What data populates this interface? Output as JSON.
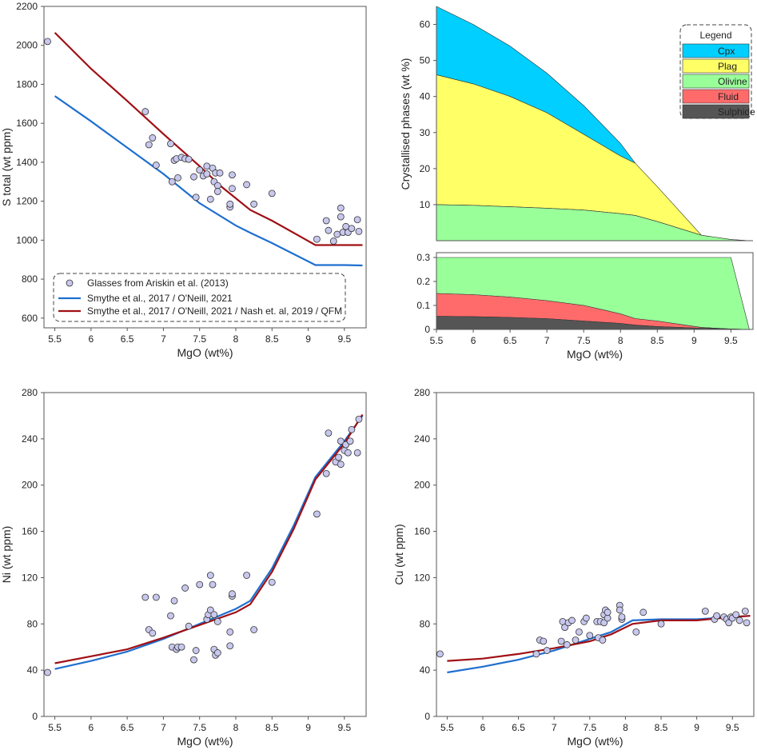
{
  "chart_data": [
    {
      "type": "scatter",
      "xlabel": "MgO (wt%)",
      "ylabel": "S total (wt ppm)",
      "xlim": [
        5.35,
        9.8
      ],
      "ylim": [
        550,
        2200
      ],
      "xticks": [
        "5.5",
        "6",
        "6.5",
        "7",
        "7.5",
        "8",
        "8.5",
        "9",
        "9.5"
      ],
      "yticks": [
        "600",
        "800",
        "1000",
        "1200",
        "1400",
        "1600",
        "1800",
        "2000",
        "2200"
      ],
      "legend_position": "bottom-left",
      "scatter_series": {
        "name": "Glasses from Ariskin et al. (2013)",
        "color": "#c8c8ee",
        "points": [
          [
            5.4,
            2020
          ],
          [
            6.75,
            1660
          ],
          [
            6.8,
            1490
          ],
          [
            6.85,
            1525
          ],
          [
            6.9,
            1385
          ],
          [
            7.1,
            1495
          ],
          [
            7.12,
            1300
          ],
          [
            7.15,
            1410
          ],
          [
            7.18,
            1418
          ],
          [
            7.2,
            1320
          ],
          [
            7.25,
            1425
          ],
          [
            7.3,
            1418
          ],
          [
            7.35,
            1415
          ],
          [
            7.42,
            1325
          ],
          [
            7.45,
            1220
          ],
          [
            7.5,
            1360
          ],
          [
            7.55,
            1330
          ],
          [
            7.6,
            1380
          ],
          [
            7.6,
            1340
          ],
          [
            7.65,
            1210
          ],
          [
            7.68,
            1370
          ],
          [
            7.7,
            1300
          ],
          [
            7.72,
            1345
          ],
          [
            7.75,
            1280
          ],
          [
            7.75,
            1250
          ],
          [
            7.78,
            1345
          ],
          [
            7.92,
            1170
          ],
          [
            7.92,
            1185
          ],
          [
            7.95,
            1265
          ],
          [
            7.95,
            1335
          ],
          [
            8.15,
            1285
          ],
          [
            8.25,
            1185
          ],
          [
            8.5,
            1240
          ],
          [
            9.12,
            1005
          ],
          [
            9.25,
            1100
          ],
          [
            9.28,
            1050
          ],
          [
            9.35,
            995
          ],
          [
            9.4,
            1030
          ],
          [
            9.45,
            1120
          ],
          [
            9.45,
            1165
          ],
          [
            9.48,
            1040
          ],
          [
            9.52,
            1070
          ],
          [
            9.55,
            1040
          ],
          [
            9.6,
            1060
          ],
          [
            9.68,
            1105
          ],
          [
            9.7,
            1045
          ]
        ]
      },
      "series": [
        {
          "name": "Smythe et al., 2017 / O'Neill, 2021",
          "color": "#1f6fcf",
          "points": [
            [
              5.5,
              1740
            ],
            [
              6.0,
              1610
            ],
            [
              6.5,
              1475
            ],
            [
              7.0,
              1340
            ],
            [
              7.5,
              1190
            ],
            [
              8.0,
              1075
            ],
            [
              8.2,
              1038
            ],
            [
              8.5,
              985
            ],
            [
              9.1,
              872
            ],
            [
              9.5,
              872
            ],
            [
              9.75,
              870
            ]
          ]
        },
        {
          "name": "Smythe et al., 2017 / O'Neill, 2021 / Nash et. al, 2019 / QFM",
          "color": "#a01015",
          "points": [
            [
              5.5,
              2065
            ],
            [
              6.0,
              1880
            ],
            [
              6.5,
              1715
            ],
            [
              7.0,
              1545
            ],
            [
              7.5,
              1380
            ],
            [
              7.8,
              1275
            ],
            [
              8.2,
              1155
            ],
            [
              8.5,
              1100
            ],
            [
              9.1,
              975
            ],
            [
              9.5,
              975
            ],
            [
              9.75,
              975
            ]
          ]
        }
      ]
    },
    {
      "type": "area",
      "xlabel": "MgO (wt%)",
      "ylabel": "Crystallised phases (wt %)",
      "xlim": [
        5.5,
        9.8
      ],
      "x": [
        5.5,
        6.0,
        6.5,
        7.0,
        7.5,
        8.0,
        8.2,
        8.5,
        9.1,
        9.5,
        9.75
      ],
      "upper_ylim": [
        0,
        65
      ],
      "upper_yticks": [
        "10",
        "20",
        "30",
        "40",
        "50",
        "60"
      ],
      "lower_ylim": [
        0,
        0.32
      ],
      "lower_yticks": [
        "0",
        "0.1",
        "0.2",
        "0.3"
      ],
      "xticks": [
        "5.5",
        "6",
        "6.5",
        "7",
        "7.5",
        "8",
        "8.5",
        "9",
        "9.5"
      ],
      "legend_title": "Legend",
      "legend_position": "top-right",
      "series": [
        {
          "name": "Cpx",
          "color": "#00cfff",
          "values": [
            65.0,
            60.0,
            54.0,
            46.5,
            37.5,
            27.0,
            21.5,
            null,
            null,
            null,
            null
          ]
        },
        {
          "name": "Plag",
          "color": "#ffff66",
          "values": [
            46.0,
            43.5,
            40.0,
            35.5,
            29.5,
            23.5,
            21.5,
            15.0,
            1.5,
            0.3,
            0
          ]
        },
        {
          "name": "Olivine",
          "color": "#99ff99",
          "values": [
            10.0,
            9.8,
            9.4,
            9.0,
            8.5,
            7.5,
            7.0,
            5.3,
            1.5,
            0.3,
            0
          ]
        },
        {
          "name": "Fluid",
          "color": "#ff6b6b",
          "values": [
            0.15,
            0.145,
            0.135,
            0.12,
            0.1,
            0.065,
            0.045,
            0.035,
            0.008,
            0.002,
            0
          ]
        },
        {
          "name": "Sulphide",
          "color": "#555555",
          "values": [
            0.055,
            0.053,
            0.05,
            0.045,
            0.035,
            0.025,
            0.018,
            0.012,
            0.005,
            0.002,
            0
          ]
        }
      ],
      "olivine_lower_top": [
        0.3,
        0.3,
        0.3,
        0.3,
        0.3,
        0.3,
        0.3,
        0.3,
        0.3,
        0.3,
        0
      ]
    },
    {
      "type": "scatter",
      "xlabel": "MgO (wt%)",
      "ylabel": "Ni (wt ppm)",
      "xlim": [
        5.35,
        9.8
      ],
      "ylim": [
        0,
        280
      ],
      "xticks": [
        "5.5",
        "6",
        "6.5",
        "7",
        "7.5",
        "8",
        "8.5",
        "9",
        "9.5"
      ],
      "yticks": [
        "0",
        "40",
        "80",
        "120",
        "160",
        "200",
        "240",
        "280"
      ],
      "points": [
        [
          5.4,
          38
        ],
        [
          6.75,
          103
        ],
        [
          6.8,
          75
        ],
        [
          6.85,
          72
        ],
        [
          6.9,
          103
        ],
        [
          7.1,
          87
        ],
        [
          7.12,
          60
        ],
        [
          7.15,
          100
        ],
        [
          7.18,
          58
        ],
        [
          7.2,
          60
        ],
        [
          7.25,
          60
        ],
        [
          7.3,
          111
        ],
        [
          7.35,
          78
        ],
        [
          7.42,
          49
        ],
        [
          7.45,
          57
        ],
        [
          7.5,
          114
        ],
        [
          7.6,
          84
        ],
        [
          7.62,
          88
        ],
        [
          7.65,
          92
        ],
        [
          7.65,
          122
        ],
        [
          7.68,
          114
        ],
        [
          7.7,
          88
        ],
        [
          7.7,
          58
        ],
        [
          7.72,
          53
        ],
        [
          7.75,
          82
        ],
        [
          7.75,
          55
        ],
        [
          7.92,
          61
        ],
        [
          7.92,
          73
        ],
        [
          7.95,
          104
        ],
        [
          7.95,
          106
        ],
        [
          8.15,
          122
        ],
        [
          8.25,
          75
        ],
        [
          8.5,
          116
        ],
        [
          9.12,
          175
        ],
        [
          9.25,
          210
        ],
        [
          9.28,
          245
        ],
        [
          9.38,
          220
        ],
        [
          9.42,
          224
        ],
        [
          9.45,
          218
        ],
        [
          9.45,
          238
        ],
        [
          9.5,
          230
        ],
        [
          9.52,
          235
        ],
        [
          9.55,
          228
        ],
        [
          9.58,
          238
        ],
        [
          9.6,
          248
        ],
        [
          9.68,
          228
        ],
        [
          9.7,
          257
        ]
      ],
      "series": [
        {
          "color": "#1f6fcf",
          "points": [
            [
              5.5,
              41
            ],
            [
              6.0,
              48
            ],
            [
              6.5,
              56
            ],
            [
              7.0,
              67
            ],
            [
              7.5,
              80
            ],
            [
              8.0,
              93
            ],
            [
              8.2,
              100
            ],
            [
              8.5,
              128
            ],
            [
              8.8,
              165
            ],
            [
              9.1,
              207
            ],
            [
              9.5,
              238
            ],
            [
              9.75,
              260
            ]
          ]
        },
        {
          "color": "#a01015",
          "points": [
            [
              5.5,
              46
            ],
            [
              6.0,
              52
            ],
            [
              6.5,
              58
            ],
            [
              7.0,
              68
            ],
            [
              7.5,
              79
            ],
            [
              8.0,
              90
            ],
            [
              8.2,
              97
            ],
            [
              8.5,
              125
            ],
            [
              8.8,
              162
            ],
            [
              9.1,
              205
            ],
            [
              9.5,
              236
            ],
            [
              9.75,
              261
            ]
          ]
        }
      ]
    },
    {
      "type": "scatter",
      "xlabel": "MgO (wt%)",
      "ylabel": "Cu (wt ppm)",
      "xlim": [
        5.35,
        9.8
      ],
      "ylim": [
        0,
        280
      ],
      "xticks": [
        "5.5",
        "6",
        "6.5",
        "7",
        "7.5",
        "8",
        "8.5",
        "9",
        "9.5"
      ],
      "yticks": [
        "0",
        "40",
        "80",
        "120",
        "160",
        "200",
        "240",
        "280"
      ],
      "points": [
        [
          5.4,
          54
        ],
        [
          6.75,
          54
        ],
        [
          6.8,
          66
        ],
        [
          6.85,
          65
        ],
        [
          6.9,
          57
        ],
        [
          7.1,
          65
        ],
        [
          7.12,
          82
        ],
        [
          7.15,
          77
        ],
        [
          7.18,
          62
        ],
        [
          7.2,
          81
        ],
        [
          7.25,
          83
        ],
        [
          7.3,
          66
        ],
        [
          7.35,
          73
        ],
        [
          7.42,
          82
        ],
        [
          7.45,
          85
        ],
        [
          7.5,
          70
        ],
        [
          7.6,
          82
        ],
        [
          7.62,
          68
        ],
        [
          7.65,
          82
        ],
        [
          7.68,
          66
        ],
        [
          7.7,
          88
        ],
        [
          7.7,
          81
        ],
        [
          7.72,
          92
        ],
        [
          7.75,
          85
        ],
        [
          7.75,
          90
        ],
        [
          7.92,
          96
        ],
        [
          7.92,
          92
        ],
        [
          7.95,
          84
        ],
        [
          7.95,
          86
        ],
        [
          8.15,
          73
        ],
        [
          8.25,
          90
        ],
        [
          8.5,
          80
        ],
        [
          9.12,
          91
        ],
        [
          9.25,
          84
        ],
        [
          9.28,
          87
        ],
        [
          9.38,
          86
        ],
        [
          9.42,
          84
        ],
        [
          9.45,
          81
        ],
        [
          9.48,
          86
        ],
        [
          9.5,
          85
        ],
        [
          9.55,
          88
        ],
        [
          9.6,
          83
        ],
        [
          9.68,
          91
        ],
        [
          9.7,
          81
        ]
      ],
      "series": [
        {
          "color": "#1f6fcf",
          "points": [
            [
              5.5,
              38
            ],
            [
              6.0,
              43
            ],
            [
              6.5,
              49
            ],
            [
              7.0,
              57
            ],
            [
              7.5,
              67
            ],
            [
              7.8,
              73
            ],
            [
              8.1,
              83
            ],
            [
              8.5,
              84
            ],
            [
              9.0,
              84
            ],
            [
              9.5,
              86
            ],
            [
              9.75,
              87
            ]
          ]
        },
        {
          "color": "#a01015",
          "points": [
            [
              5.5,
              48
            ],
            [
              6.0,
              50
            ],
            [
              6.5,
              54
            ],
            [
              7.0,
              59
            ],
            [
              7.5,
              65
            ],
            [
              7.8,
              71
            ],
            [
              8.1,
              80
            ],
            [
              8.5,
              83
            ],
            [
              9.0,
              83
            ],
            [
              9.5,
              86
            ],
            [
              9.75,
              87
            ]
          ]
        }
      ]
    }
  ]
}
